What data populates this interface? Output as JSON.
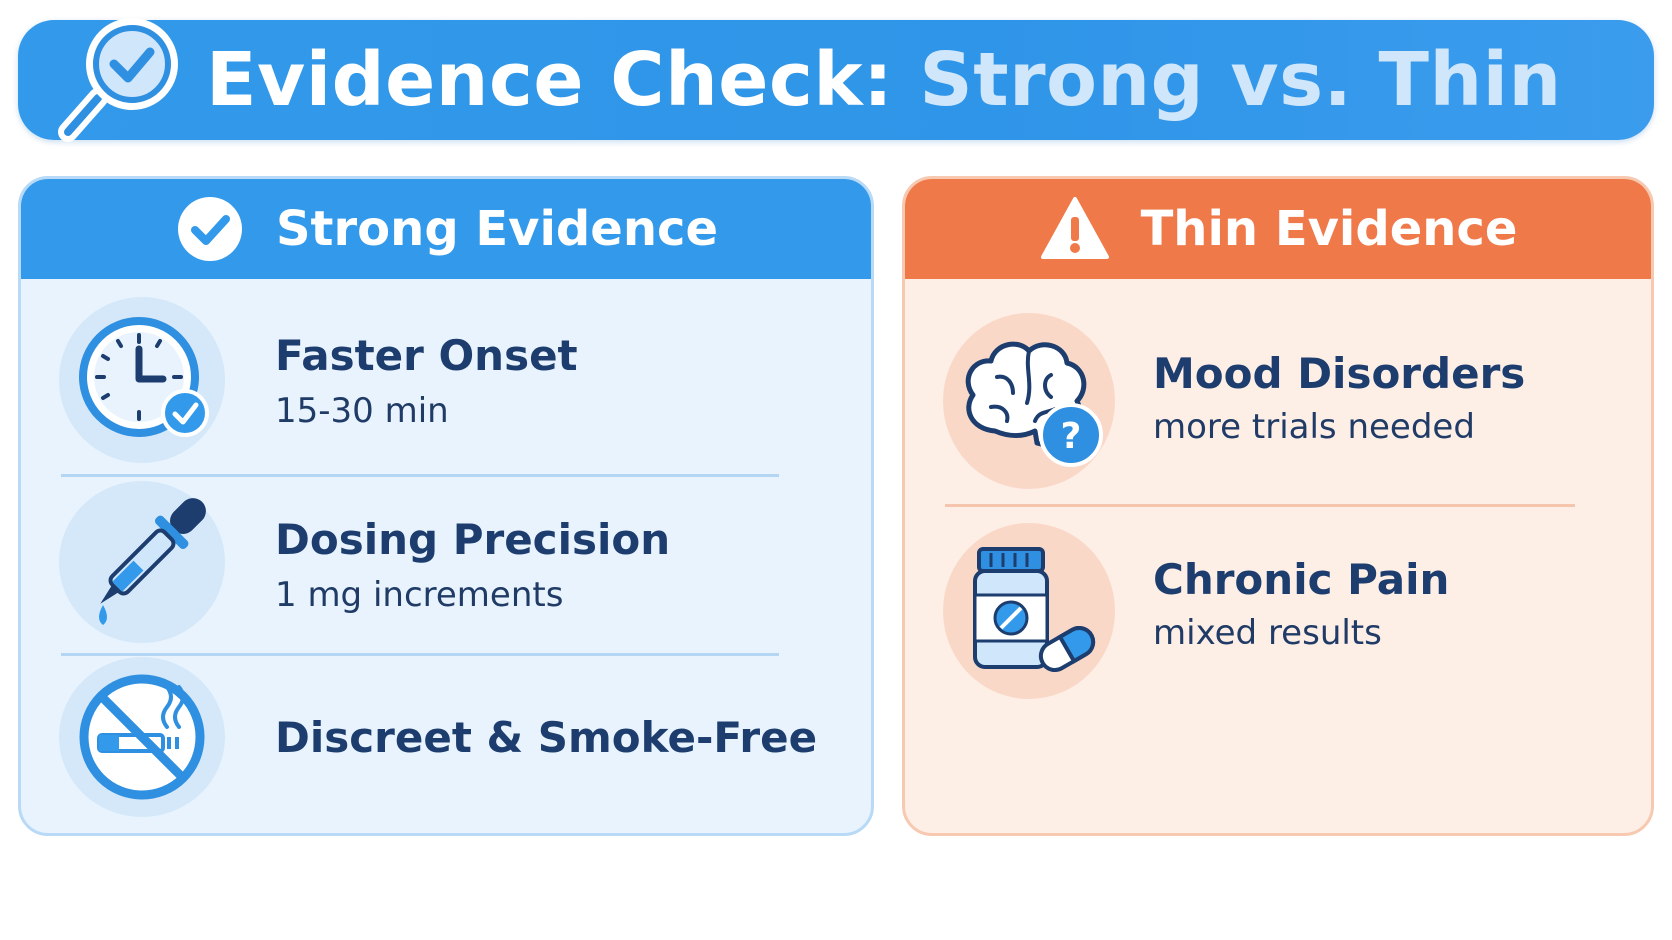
{
  "header": {
    "title_part1": "Evidence Check: ",
    "title_part2": "Strong vs. Thin",
    "icon": "magnifier-check-icon"
  },
  "strong": {
    "heading": "Strong Evidence",
    "heading_icon": "check-circle-icon",
    "items": [
      {
        "title": "Faster Onset",
        "subtitle": "15-30 min",
        "icon": "clock-check-icon"
      },
      {
        "title": "Dosing Precision",
        "subtitle": "1 mg increments",
        "icon": "dropper-icon"
      },
      {
        "title": "Discreet & Smoke-Free",
        "subtitle": "",
        "icon": "no-smoking-icon"
      }
    ]
  },
  "thin": {
    "heading": "Thin Evidence",
    "heading_icon": "warning-triangle-icon",
    "items": [
      {
        "title": "Mood Disorders",
        "subtitle": "more trials needed",
        "icon": "brain-question-icon"
      },
      {
        "title": "Chronic Pain",
        "subtitle": "mixed results",
        "icon": "pill-bottle-icon"
      }
    ]
  },
  "colors": {
    "blue": "#3399ea",
    "orange": "#f0794a",
    "navy": "#1c3d6e",
    "light_blue": "#e8f3fd",
    "light_orange": "#fdeee6"
  }
}
